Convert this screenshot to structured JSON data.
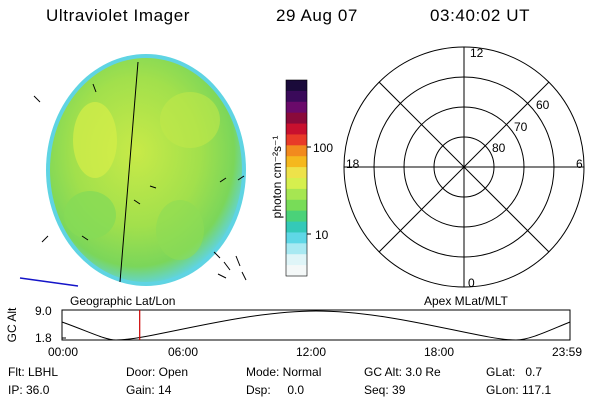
{
  "header": {
    "instrument": "Ultraviolet Imager",
    "date": "29 Aug 07",
    "time": "03:40:02 UT"
  },
  "colorbar": {
    "unit_label": "photon cm⁻²s⁻¹",
    "tick_100": "100",
    "tick_10": "10",
    "colors": [
      "#1a0a3a",
      "#3a0a5a",
      "#6a0a6a",
      "#8a0a3a",
      "#c8102e",
      "#e83a28",
      "#f28a1e",
      "#f5b81e",
      "#eee24a",
      "#d6ef4e",
      "#a6e652",
      "#78dc58",
      "#4ad279",
      "#34c9b8",
      "#5fd7e6",
      "#a8e9f2",
      "#dff5f8",
      "#f4f8f8"
    ]
  },
  "image_panel": {
    "label": "Geographic Lat/Lon",
    "disc_color": "#a5e24c",
    "rim_color": "#5fd4e3"
  },
  "polar_panel": {
    "label": "Apex MLat/MLT",
    "mlt_labels": {
      "top": "12",
      "left": "18",
      "right": "6",
      "bottom": "0"
    },
    "lat_labels": [
      "60",
      "70",
      "80"
    ]
  },
  "altitude_plot": {
    "ylabel": "GC Alt",
    "y_ticks": [
      "9.0",
      "1.8"
    ],
    "x_ticks": [
      "00:00",
      "06:00",
      "12:00",
      "18:00",
      "23:59"
    ],
    "marker_time": "03:40",
    "marker_color": "#cc0000"
  },
  "info": {
    "filter": "Flt: LBHL",
    "door": "Door: Open",
    "mode": "Mode: Normal",
    "gc_alt": "GC Alt: 3.0 Re",
    "glat": "GLat:   0.7",
    "ip": "IP: 36.0",
    "gain": "Gain: 14",
    "dsp": "Dsp:     0.0",
    "seq": "Seq: 39",
    "glon": "GLon: 117.1"
  }
}
